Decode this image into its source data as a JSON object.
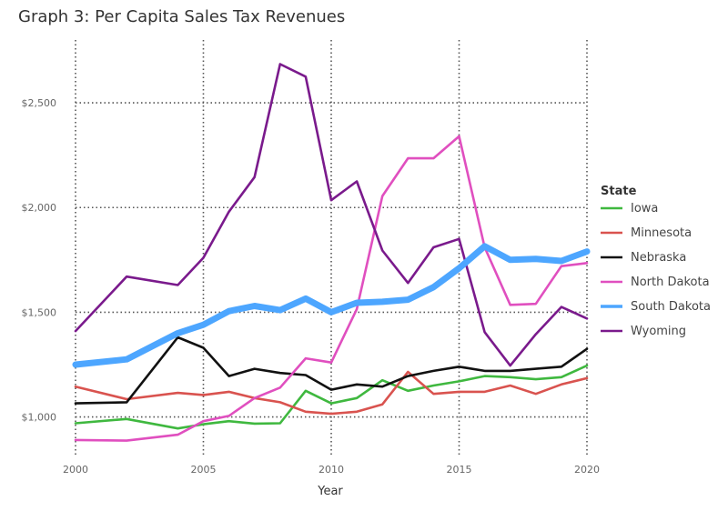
{
  "chart_data": {
    "type": "line",
    "title": "Graph 3: Per Capita Sales Tax Revenues",
    "xlabel": "Year",
    "ylabel": "",
    "legend_title": "State",
    "legend_position": "right",
    "grid": true,
    "xlim": [
      2000,
      2020
    ],
    "ylim": [
      820,
      2800
    ],
    "x_ticks": [
      2000,
      2005,
      2010,
      2015,
      2020
    ],
    "x_tick_labels": [
      "2000",
      "2005",
      "2010",
      "2015",
      "2020"
    ],
    "y_ticks": [
      1000,
      1500,
      2000,
      2500
    ],
    "y_tick_labels": [
      "$1,000",
      "$1,500",
      "$2,000",
      "$2,500"
    ],
    "series": [
      {
        "name": "Iowa",
        "color": "#3fb83f",
        "x": [
          2000,
          2002,
          2004,
          2005,
          2006,
          2007,
          2008,
          2009,
          2010,
          2011,
          2012,
          2013,
          2014,
          2015,
          2016,
          2017,
          2018,
          2019,
          2020
        ],
        "values": [
          970,
          990,
          945,
          965,
          980,
          968,
          970,
          1125,
          1065,
          1090,
          1175,
          1125,
          1150,
          1170,
          1195,
          1190,
          1180,
          1190,
          1245
        ]
      },
      {
        "name": "Minnesota",
        "color": "#d9534f",
        "x": [
          2000,
          2002,
          2004,
          2005,
          2006,
          2007,
          2008,
          2009,
          2010,
          2011,
          2012,
          2013,
          2014,
          2015,
          2016,
          2017,
          2018,
          2019,
          2020
        ],
        "values": [
          1145,
          1085,
          1115,
          1105,
          1120,
          1090,
          1070,
          1025,
          1015,
          1025,
          1060,
          1215,
          1110,
          1120,
          1120,
          1150,
          1110,
          1155,
          1185
        ]
      },
      {
        "name": "Nebraska",
        "color": "#111111",
        "x": [
          2000,
          2002,
          2004,
          2005,
          2006,
          2007,
          2008,
          2009,
          2010,
          2011,
          2012,
          2013,
          2014,
          2015,
          2016,
          2017,
          2018,
          2019,
          2020
        ],
        "values": [
          1065,
          1070,
          1380,
          1330,
          1195,
          1230,
          1210,
          1200,
          1130,
          1155,
          1145,
          1195,
          1220,
          1240,
          1220,
          1220,
          1230,
          1240,
          1325
        ]
      },
      {
        "name": "North Dakota",
        "color": "#e04fbf",
        "x": [
          2000,
          2002,
          2004,
          2005,
          2006,
          2007,
          2008,
          2009,
          2010,
          2011,
          2012,
          2013,
          2014,
          2015,
          2016,
          2017,
          2018,
          2019,
          2020
        ],
        "values": [
          890,
          887,
          915,
          980,
          1005,
          1090,
          1140,
          1280,
          1260,
          1515,
          2055,
          2235,
          2235,
          2340,
          1810,
          1535,
          1540,
          1720,
          1735
        ]
      },
      {
        "name": "South Dakota",
        "color": "#4da6ff",
        "x": [
          2000,
          2002,
          2004,
          2005,
          2006,
          2007,
          2008,
          2009,
          2010,
          2011,
          2012,
          2013,
          2014,
          2015,
          2016,
          2017,
          2018,
          2019,
          2020
        ],
        "values": [
          1250,
          1275,
          1400,
          1440,
          1505,
          1530,
          1510,
          1565,
          1500,
          1545,
          1550,
          1560,
          1620,
          1710,
          1815,
          1750,
          1755,
          1745,
          1790
        ]
      },
      {
        "name": "Wyoming",
        "color": "#7a1a8c",
        "x": [
          2000,
          2002,
          2004,
          2005,
          2006,
          2007,
          2008,
          2009,
          2010,
          2011,
          2012,
          2013,
          2014,
          2015,
          2016,
          2017,
          2018,
          2019,
          2020
        ],
        "values": [
          1410,
          1670,
          1630,
          1760,
          1980,
          2145,
          2685,
          2625,
          2035,
          2125,
          1795,
          1640,
          1810,
          1850,
          1405,
          1245,
          1395,
          1525,
          1470
        ]
      }
    ]
  }
}
